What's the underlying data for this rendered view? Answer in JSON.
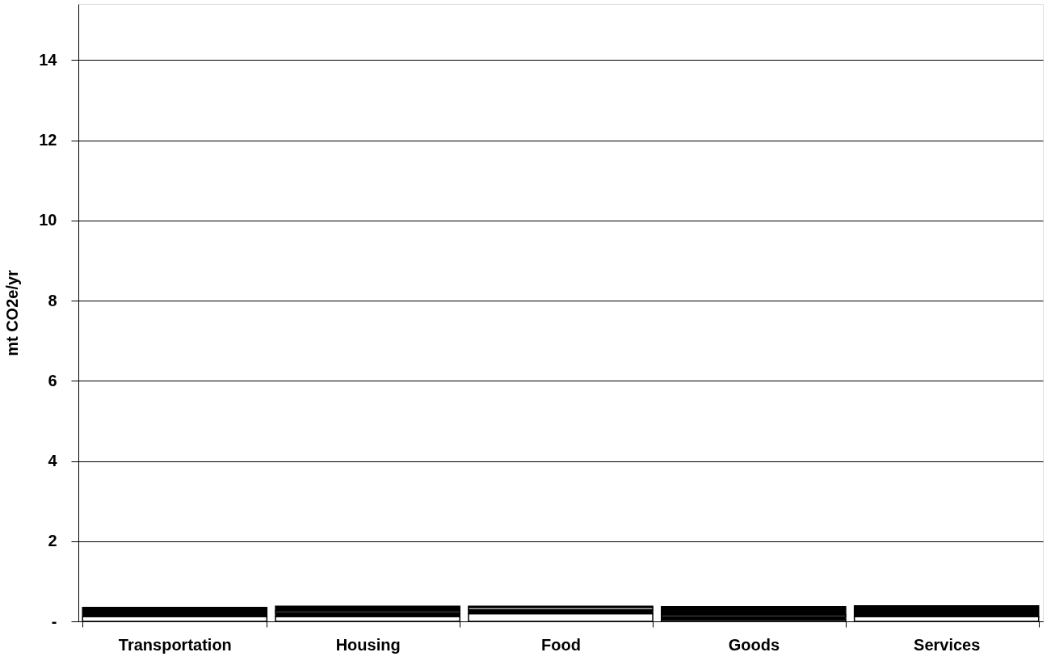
{
  "chart_data": {
    "type": "bar",
    "stacked": true,
    "ylabel": "mt CO2e/yr",
    "categories": [
      "Transportation",
      "Housing",
      "Food",
      "Goods",
      "Services"
    ],
    "series": [
      {
        "color": "#ffffff",
        "values": [
          0.12,
          0.12,
          0.19,
          0.04,
          0.12
        ]
      },
      {
        "color": "#000000",
        "values": [
          0.23,
          0.1,
          0.1,
          0.08,
          0.27
        ]
      },
      {
        "color": "#ffffff",
        "values": [
          0,
          0.04,
          0.06,
          0.04,
          0
        ]
      },
      {
        "color": "#000000",
        "values": [
          0,
          0.12,
          0.03,
          0.21,
          0
        ]
      }
    ],
    "ylim": [
      0,
      15.4
    ],
    "yticks": [
      {
        "value": 0,
        "label": "-"
      },
      2,
      4,
      6,
      8,
      10,
      12,
      14
    ],
    "grid": "y"
  }
}
